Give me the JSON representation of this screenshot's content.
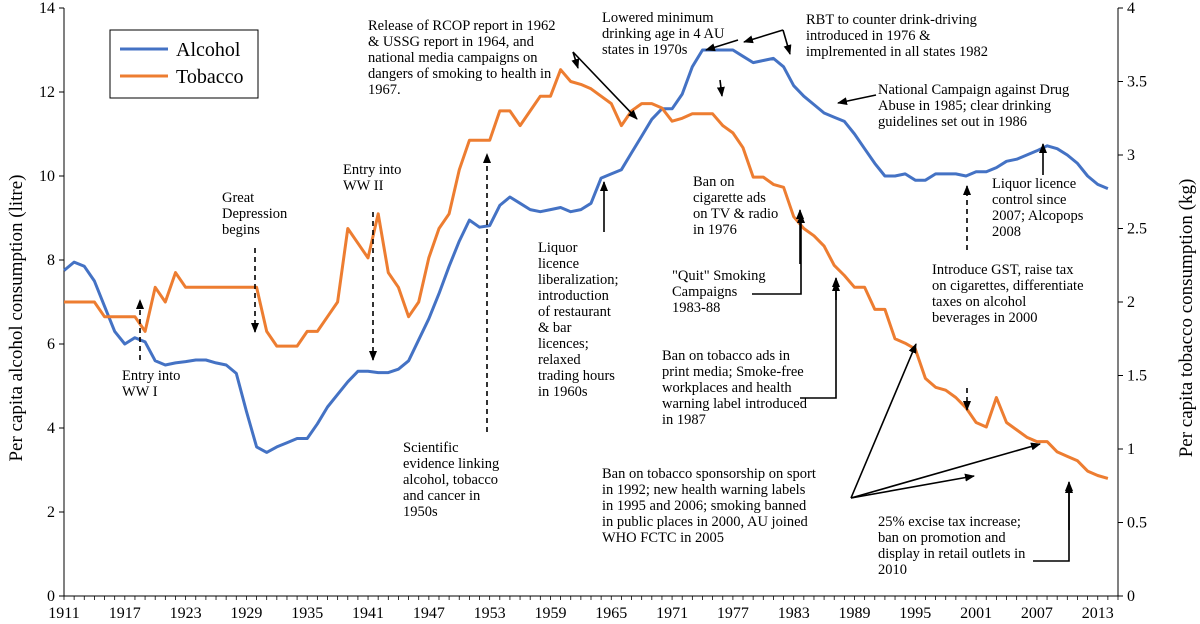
{
  "chart_data": {
    "type": "line",
    "title": "",
    "xlabel": "",
    "ylabel_left": "Per capita alcohol consumption (litre)",
    "ylabel_right": "Per capita tobacco consumption (kg)",
    "xlim": [
      1911,
      2015
    ],
    "ylim_left": [
      0,
      14
    ],
    "ylim_right": [
      0,
      4
    ],
    "x_ticks": [
      "1911",
      "1917",
      "1923",
      "1929",
      "1935",
      "1941",
      "1947",
      "1953",
      "1959",
      "1965",
      "1971",
      "1977",
      "1983",
      "1989",
      "1995",
      "2001",
      "2007",
      "2013"
    ],
    "y_ticks_left": [
      "0",
      "2",
      "4",
      "6",
      "8",
      "10",
      "12",
      "14"
    ],
    "y_ticks_right": [
      "0",
      "0.5",
      "1",
      "1.5",
      "2",
      "2.5",
      "3",
      "3.5",
      "4"
    ],
    "legend_position": "top-left",
    "colors": {
      "alcohol": "#4472C4",
      "tobacco": "#ED7D31"
    },
    "series": [
      {
        "name": "Alcohol",
        "axis": "left",
        "x": [
          1911,
          1912,
          1913,
          1914,
          1915,
          1916,
          1917,
          1918,
          1919,
          1920,
          1921,
          1922,
          1923,
          1924,
          1925,
          1926,
          1927,
          1928,
          1929,
          1930,
          1931,
          1932,
          1933,
          1934,
          1935,
          1936,
          1937,
          1938,
          1939,
          1940,
          1941,
          1942,
          1943,
          1944,
          1945,
          1946,
          1947,
          1948,
          1949,
          1950,
          1951,
          1952,
          1953,
          1954,
          1955,
          1956,
          1957,
          1958,
          1959,
          1960,
          1961,
          1962,
          1963,
          1964,
          1965,
          1966,
          1967,
          1968,
          1969,
          1970,
          1971,
          1972,
          1973,
          1974,
          1975,
          1976,
          1977,
          1978,
          1979,
          1980,
          1981,
          1982,
          1983,
          1984,
          1985,
          1986,
          1987,
          1988,
          1989,
          1990,
          1991,
          1992,
          1993,
          1994,
          1995,
          1996,
          1997,
          1998,
          1999,
          2000,
          2001,
          2002,
          2003,
          2004,
          2005,
          2006,
          2007,
          2008,
          2009,
          2010,
          2011,
          2012,
          2013,
          2014
        ],
        "values": [
          7.75,
          7.95,
          7.85,
          7.5,
          6.9,
          6.3,
          6.0,
          6.15,
          6.05,
          5.6,
          5.5,
          5.55,
          5.58,
          5.62,
          5.62,
          5.55,
          5.5,
          5.3,
          4.4,
          3.55,
          3.42,
          3.55,
          3.65,
          3.75,
          3.75,
          4.1,
          4.5,
          4.8,
          5.1,
          5.35,
          5.35,
          5.32,
          5.32,
          5.4,
          5.6,
          6.1,
          6.6,
          7.2,
          7.85,
          8.45,
          8.95,
          8.78,
          8.82,
          9.3,
          9.5,
          9.35,
          9.2,
          9.15,
          9.2,
          9.25,
          9.15,
          9.2,
          9.35,
          9.95,
          10.05,
          10.15,
          10.55,
          10.95,
          11.35,
          11.6,
          11.6,
          11.95,
          12.6,
          13.0,
          13.0,
          13.0,
          13.0,
          12.85,
          12.7,
          12.75,
          12.8,
          12.6,
          12.15,
          11.9,
          11.7,
          11.5,
          11.4,
          11.3,
          11.0,
          10.65,
          10.3,
          10.0,
          10.0,
          10.05,
          9.9,
          9.9,
          10.05,
          10.05,
          10.05,
          10.0,
          10.1,
          10.1,
          10.2,
          10.35,
          10.4,
          10.5,
          10.6,
          10.72,
          10.65,
          10.5,
          10.3,
          10.0,
          9.8,
          9.7
        ]
      },
      {
        "name": "Tobacco",
        "axis": "right",
        "x": [
          1911,
          1912,
          1913,
          1914,
          1915,
          1916,
          1917,
          1918,
          1919,
          1920,
          1921,
          1922,
          1923,
          1924,
          1925,
          1926,
          1927,
          1928,
          1929,
          1930,
          1931,
          1932,
          1933,
          1934,
          1935,
          1936,
          1937,
          1938,
          1939,
          1940,
          1941,
          1942,
          1943,
          1944,
          1945,
          1946,
          1947,
          1948,
          1949,
          1950,
          1951,
          1952,
          1953,
          1954,
          1955,
          1956,
          1957,
          1958,
          1959,
          1960,
          1961,
          1962,
          1963,
          1964,
          1965,
          1966,
          1967,
          1968,
          1969,
          1970,
          1971,
          1972,
          1973,
          1974,
          1975,
          1976,
          1977,
          1978,
          1979,
          1980,
          1981,
          1982,
          1983,
          1984,
          1985,
          1986,
          1987,
          1988,
          1989,
          1990,
          1991,
          1992,
          1993,
          1994,
          1995,
          1996,
          1997,
          1998,
          1999,
          2000,
          2001,
          2002,
          2003,
          2004,
          2005,
          2006,
          2007,
          2008,
          2009,
          2010,
          2011,
          2012,
          2013,
          2014
        ],
        "values": [
          2.0,
          2.0,
          2.0,
          2.0,
          1.9,
          1.9,
          1.9,
          1.9,
          1.8,
          2.1,
          2.0,
          2.2,
          2.1,
          2.1,
          2.1,
          2.1,
          2.1,
          2.1,
          2.1,
          2.1,
          1.8,
          1.7,
          1.7,
          1.7,
          1.8,
          1.8,
          1.9,
          2.0,
          2.5,
          2.4,
          2.3,
          2.6,
          2.2,
          2.1,
          1.9,
          2.0,
          2.3,
          2.5,
          2.6,
          2.9,
          3.1,
          3.1,
          3.1,
          3.3,
          3.3,
          3.2,
          3.3,
          3.4,
          3.4,
          3.58,
          3.5,
          3.48,
          3.45,
          3.4,
          3.35,
          3.2,
          3.3,
          3.35,
          3.35,
          3.32,
          3.23,
          3.25,
          3.28,
          3.28,
          3.28,
          3.2,
          3.15,
          3.05,
          2.85,
          2.85,
          2.8,
          2.78,
          2.58,
          2.5,
          2.45,
          2.38,
          2.25,
          2.18,
          2.1,
          2.1,
          1.95,
          1.95,
          1.75,
          1.72,
          1.68,
          1.48,
          1.42,
          1.4,
          1.35,
          1.28,
          1.18,
          1.15,
          1.35,
          1.18,
          1.13,
          1.08,
          1.05,
          1.05,
          0.98,
          0.95,
          0.92,
          0.85,
          0.82,
          0.8
        ]
      }
    ],
    "annotations": [
      {
        "id": "ww1",
        "text": "Entry into\nWW I"
      },
      {
        "id": "depression",
        "text": "Great\nDepression\nbegins"
      },
      {
        "id": "ww2",
        "text": "Entry into\nWW II"
      },
      {
        "id": "rcop",
        "text": "Release of RCOP report  in 1962\n& USSG report in 1964, and\nnational media campaigns on\ndangers of smoking to health in\n1967."
      },
      {
        "id": "scientific",
        "text": "Scientific\nevidence linking\nalcohol, tobacco\nand cancer in\n1950s"
      },
      {
        "id": "liquor",
        "text": "Liquor\nlicence\nliberalization;\nintroduction\nof restaurant\n& bar\nlicences;\nrelaxed\ntrading hours\nin 1960s"
      },
      {
        "id": "drinking_age",
        "text": "Lowered minimum\ndrinking age in 4 AU\nstates in 1970s"
      },
      {
        "id": "rbt",
        "text": "RBT to counter drink-driving\nintroduced in 1976 &\nimplremented in all states 1982"
      },
      {
        "id": "campaign_drug",
        "text": "National Campaign against Drug\nAbuse in 1985; clear drinking\nguidelines set out in 1986"
      },
      {
        "id": "tv_ban",
        "text": "Ban on\ncigarette ads\non TV & radio\nin 1976"
      },
      {
        "id": "quit",
        "text": "\"Quit\" Smoking\nCampaigns\n1983-88"
      },
      {
        "id": "print_ban",
        "text": "Ban on tobacco ads in\nprint media; Smoke-free\nworkplaces and health\nwarning label introduced\nin 1987"
      },
      {
        "id": "sponsorship",
        "text": "Ban on tobacco sponsorship on sport\nin 1992; new health warning labels\nin 1995 and 2006;  smoking banned\nin public places in 2000, AU joined\nWHO FCTC in 2005"
      },
      {
        "id": "liquor_control",
        "text": "Liquor licence\ncontrol since\n2007; Alcopops\n2008"
      },
      {
        "id": "gst",
        "text": "Introduce GST, raise tax\non cigarettes, differentiate\ntaxes on alcohol\nbeverages in 2000"
      },
      {
        "id": "excise",
        "text": "25% excise tax increase;\nban on promotion and\ndisplay in retail outlets in\n2010"
      }
    ]
  }
}
